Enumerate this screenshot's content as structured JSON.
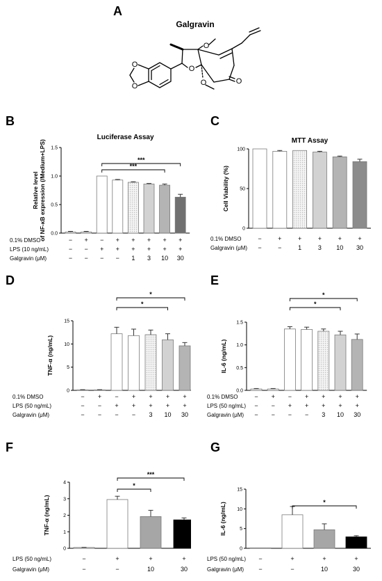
{
  "panel_a": {
    "label": "A",
    "compound_name": "Galgravin",
    "atoms": {
      "o1": "O",
      "o2": "O",
      "o3": "O",
      "o4": "O",
      "o5": "O",
      "o6": "O"
    }
  },
  "colors": {
    "white": "#ffffff",
    "light_dotted": "#e4e4e4",
    "light_gray": "#d2d2d2",
    "medium_gray": "#b4b4b4",
    "dark_gray": "#8c8c8c",
    "darker_gray": "#707070",
    "solid_gray": "#a6a6a6",
    "black": "#000000"
  },
  "chart_data": [
    {
      "id": "B",
      "label": "B",
      "type": "bar",
      "title": "Luciferase Assay",
      "ylabel": "Relative level of NF-κB expression (/Medium+LPS)",
      "ylim": [
        0,
        1.5
      ],
      "yticks": [
        "0.0",
        "0.5",
        "1.0",
        "1.5"
      ],
      "values": [
        0.02,
        0.02,
        1.0,
        0.93,
        0.89,
        0.86,
        0.84,
        0.63
      ],
      "errors": [
        0.01,
        0.01,
        0.0,
        0.01,
        0.01,
        0.01,
        0.02,
        0.05
      ],
      "fills": [
        "white",
        "white",
        "white",
        "white",
        "light_dotted",
        "light_gray",
        "medium_gray",
        "darker_gray"
      ],
      "rows": [
        {
          "label": "0.1% DMSO",
          "values": [
            "−",
            "+",
            "−",
            "+",
            "+",
            "+",
            "+",
            "+"
          ]
        },
        {
          "label": "LPS (10 ng/mL)",
          "values": [
            "−",
            "−",
            "+",
            "+",
            "+",
            "+",
            "+",
            "+"
          ]
        },
        {
          "label": "Galgravin (μM)",
          "values": [
            "−",
            "−",
            "−",
            "−",
            "1",
            "3",
            "10",
            "30"
          ]
        }
      ],
      "significance": [
        {
          "from": 2,
          "to": 7,
          "text": "***"
        },
        {
          "from": 2,
          "to": 6,
          "text": "***"
        }
      ]
    },
    {
      "id": "C",
      "label": "C",
      "type": "bar",
      "title": "MTT Assay",
      "ylabel": "Cell Viability (%)",
      "ylim": [
        0,
        100
      ],
      "yticks": [
        "0",
        "50",
        "100"
      ],
      "values": [
        100,
        97,
        98,
        96,
        90,
        84
      ],
      "errors": [
        0,
        1,
        0,
        1,
        1,
        3
      ],
      "fills": [
        "white",
        "white",
        "light_dotted",
        "light_gray",
        "medium_gray",
        "dark_gray"
      ],
      "rows": [
        {
          "label": "0.1% DMSO",
          "values": [
            "−",
            "+",
            "+",
            "+",
            "+",
            "+"
          ]
        },
        {
          "label": "Galgravin (μM)",
          "values": [
            "−",
            "−",
            "1",
            "3",
            "10",
            "30"
          ]
        }
      ],
      "significance": []
    },
    {
      "id": "D",
      "label": "D",
      "type": "bar",
      "title": "",
      "ylabel": "TNF-α (ng/mL)",
      "ylim": [
        0,
        15
      ],
      "yticks": [
        "0",
        "5",
        "10",
        "15"
      ],
      "values": [
        0.1,
        0.1,
        12.2,
        11.8,
        12.0,
        10.9,
        9.6
      ],
      "errors": [
        0.05,
        0.05,
        1.4,
        1.4,
        1.0,
        1.3,
        0.7
      ],
      "fills": [
        "white",
        "white",
        "white",
        "white",
        "light_dotted",
        "light_gray",
        "medium_gray"
      ],
      "rows": [
        {
          "label": "0.1% DMSO",
          "values": [
            "−",
            "+",
            "−",
            "+",
            "+",
            "+",
            "+"
          ]
        },
        {
          "label": "LPS (50 ng/mL)",
          "values": [
            "−",
            "−",
            "+",
            "+",
            "+",
            "+",
            "+"
          ]
        },
        {
          "label": "Galgravin (μM)",
          "values": [
            "−",
            "−",
            "−",
            "−",
            "3",
            "10",
            "30"
          ]
        }
      ],
      "significance": [
        {
          "from": 2,
          "to": 6,
          "text": "*"
        },
        {
          "from": 2,
          "to": 5,
          "text": "*"
        }
      ]
    },
    {
      "id": "E",
      "label": "E",
      "type": "bar",
      "title": "",
      "ylabel": "IL-6 (ng/mL)",
      "ylim": [
        0,
        1.5
      ],
      "yticks": [
        "0.0",
        "0.5",
        "1.0",
        "1.5"
      ],
      "values": [
        0.03,
        0.03,
        1.35,
        1.34,
        1.3,
        1.22,
        1.12
      ],
      "errors": [
        0.01,
        0.01,
        0.05,
        0.05,
        0.05,
        0.08,
        0.12
      ],
      "fills": [
        "white",
        "white",
        "white",
        "white",
        "light_dotted",
        "light_gray",
        "medium_gray"
      ],
      "rows": [
        {
          "label": "0.1% DMSO",
          "values": [
            "−",
            "+",
            "−",
            "+",
            "+",
            "+",
            "+"
          ]
        },
        {
          "label": "LPS (50 ng/mL)",
          "values": [
            "−",
            "−",
            "+",
            "+",
            "+",
            "+",
            "+"
          ]
        },
        {
          "label": "Galgravin (μM)",
          "values": [
            "−",
            "−",
            "−",
            "−",
            "3",
            "10",
            "30"
          ]
        }
      ],
      "significance": [
        {
          "from": 2,
          "to": 6,
          "text": "*"
        },
        {
          "from": 2,
          "to": 5,
          "text": "*"
        }
      ]
    },
    {
      "id": "F",
      "label": "F",
      "type": "bar",
      "title": "",
      "ylabel": "TNF-α (ng/mL)",
      "ylim": [
        0,
        4
      ],
      "yticks": [
        "0",
        "1",
        "2",
        "3",
        "4"
      ],
      "values": [
        0.05,
        2.95,
        1.92,
        1.72
      ],
      "errors": [
        0.01,
        0.2,
        0.38,
        0.12
      ],
      "fills": [
        "white",
        "white",
        "solid_gray",
        "black"
      ],
      "rows": [
        {
          "label": "LPS (50 ng/mL)",
          "values": [
            "−",
            "+",
            "+",
            "+"
          ]
        },
        {
          "label": "Galgravin (μM)",
          "values": [
            "−",
            "−",
            "10",
            "30"
          ]
        }
      ],
      "significance": [
        {
          "from": 1,
          "to": 3,
          "text": "***"
        },
        {
          "from": 1,
          "to": 2,
          "text": "*"
        }
      ]
    },
    {
      "id": "G",
      "label": "G",
      "type": "bar",
      "title": "",
      "ylabel": "IL-6 (ng/mL)",
      "ylim": [
        0,
        15
      ],
      "yticks": [
        "0",
        "5",
        "10",
        "15"
      ],
      "values": [
        0,
        8.5,
        4.7,
        2.9
      ],
      "errors": [
        0,
        2.1,
        1.5,
        0.3
      ],
      "fills": [
        "white",
        "white",
        "solid_gray",
        "black"
      ],
      "rows": [
        {
          "label": "LPS (50 ng/mL)",
          "values": [
            "−",
            "+",
            "+",
            "+"
          ]
        },
        {
          "label": "Galgravin (μM)",
          "values": [
            "−",
            "−",
            "10",
            "30"
          ]
        }
      ],
      "significance": [
        {
          "from": 1,
          "to": 3,
          "text": "*"
        }
      ]
    }
  ]
}
